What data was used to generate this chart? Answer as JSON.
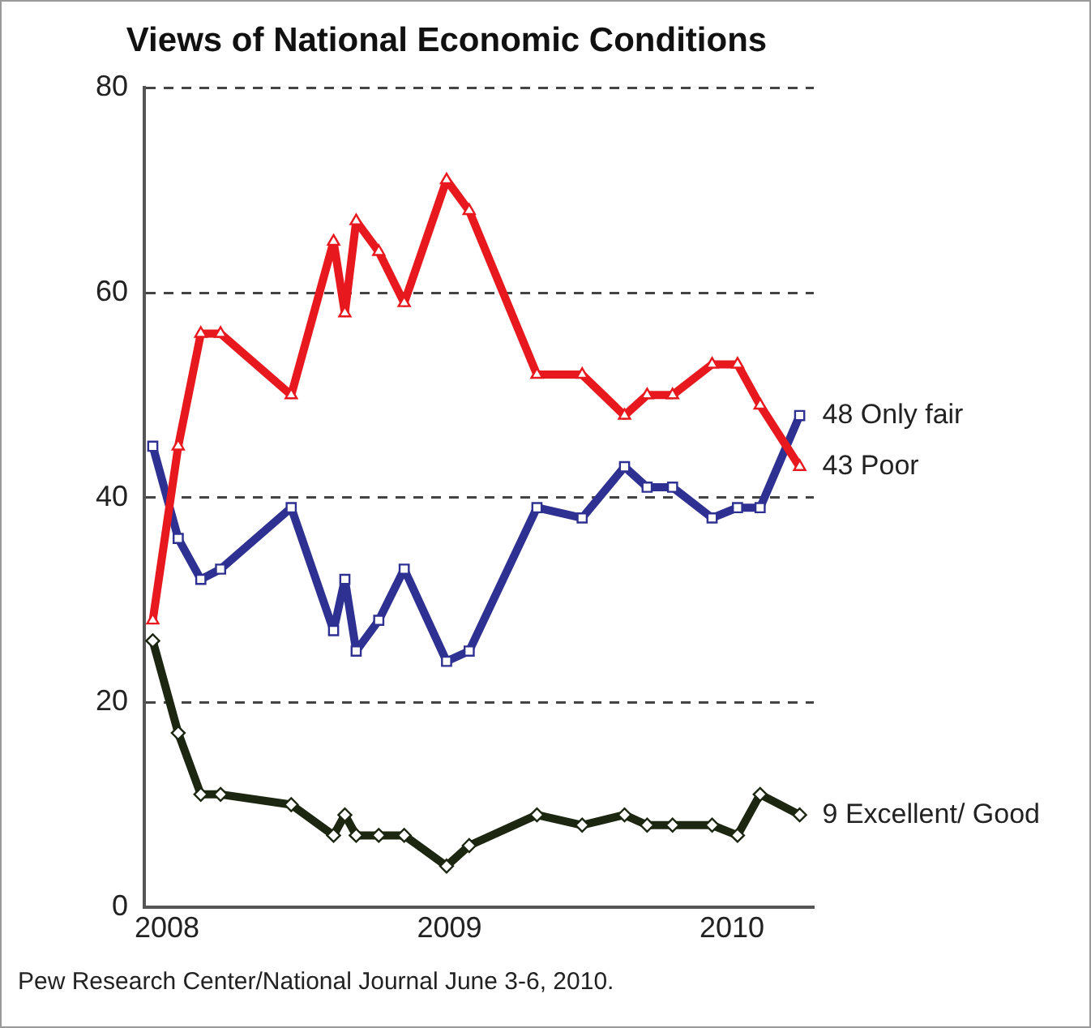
{
  "chart_data": {
    "type": "line",
    "title": "Views of National Economic Conditions",
    "x": [
      2007.95,
      2008.04,
      2008.12,
      2008.19,
      2008.44,
      2008.59,
      2008.63,
      2008.67,
      2008.75,
      2008.84,
      2008.99,
      2009.07,
      2009.31,
      2009.47,
      2009.62,
      2009.7,
      2009.79,
      2009.93,
      2010.02,
      2010.1,
      2010.24
    ],
    "xlim": [
      2007.92,
      2010.29
    ],
    "xticks": [
      2008,
      2009,
      2010
    ],
    "ylim": [
      0,
      80
    ],
    "yticks": [
      0,
      20,
      40,
      60,
      80
    ],
    "grid": "y",
    "legend": false,
    "series": [
      {
        "name": "Poor",
        "color": "#e8191e",
        "marker": "triangle",
        "values": [
          28,
          45,
          56,
          56,
          50,
          65,
          58,
          67,
          64,
          59,
          71,
          68,
          52,
          52,
          48,
          50,
          50,
          53,
          53,
          49,
          43
        ],
        "value_labels": [
          null,
          null,
          null,
          null,
          null,
          null,
          null,
          null,
          null,
          null,
          null,
          null,
          null,
          null,
          null,
          null,
          null,
          null,
          null,
          null,
          "43"
        ]
      },
      {
        "name": "Only fair",
        "color": "#2e3192",
        "marker": "square",
        "values": [
          45,
          36,
          32,
          33,
          39,
          27,
          32,
          25,
          28,
          33,
          24,
          25,
          39,
          38,
          43,
          41,
          41,
          38,
          39,
          39,
          48
        ],
        "value_labels": [
          null,
          null,
          null,
          null,
          null,
          null,
          null,
          null,
          null,
          null,
          null,
          null,
          null,
          null,
          null,
          null,
          null,
          null,
          null,
          null,
          "48"
        ]
      },
      {
        "name": "Excellent/ Good",
        "color": "#1c2610",
        "marker": "diamond",
        "values": [
          26,
          17,
          11,
          11,
          10,
          7,
          9,
          7,
          7,
          7,
          4,
          6,
          9,
          8,
          9,
          8,
          8,
          8,
          7,
          11,
          9
        ],
        "value_labels": [
          null,
          null,
          null,
          null,
          null,
          null,
          null,
          null,
          null,
          null,
          null,
          null,
          null,
          null,
          null,
          null,
          null,
          null,
          null,
          null,
          "9"
        ]
      }
    ],
    "annotations": [
      "Pew Research Center/National Journal June 3-6, 2010."
    ]
  }
}
